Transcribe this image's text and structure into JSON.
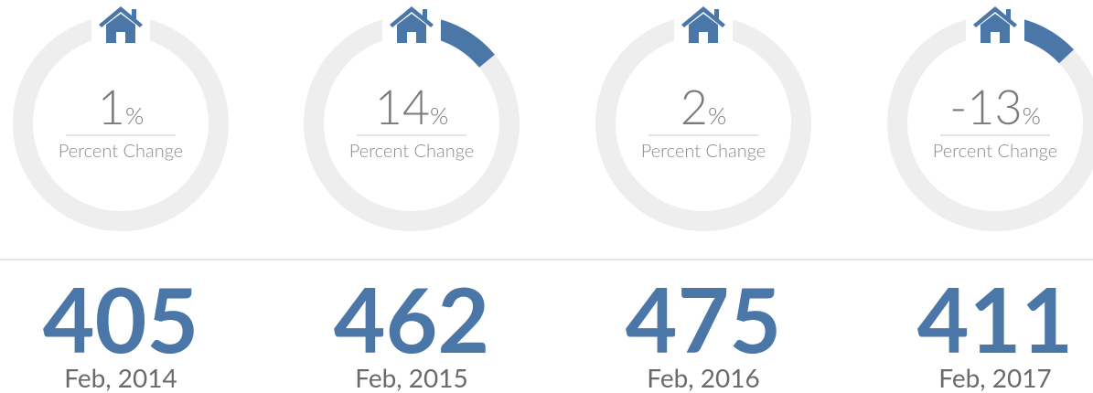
{
  "unit": "%",
  "items": [
    {
      "percent": 1,
      "caption": "Percent Change",
      "value": 405,
      "date": "Feb, 2014"
    },
    {
      "percent": 14,
      "caption": "Percent Change",
      "value": 462,
      "date": "Feb, 2015"
    },
    {
      "percent": 2,
      "caption": "Percent Change",
      "value": 475,
      "date": "Feb, 2016"
    },
    {
      "percent": -13,
      "caption": "Percent Change",
      "value": 411,
      "date": "Feb, 2017"
    }
  ]
}
